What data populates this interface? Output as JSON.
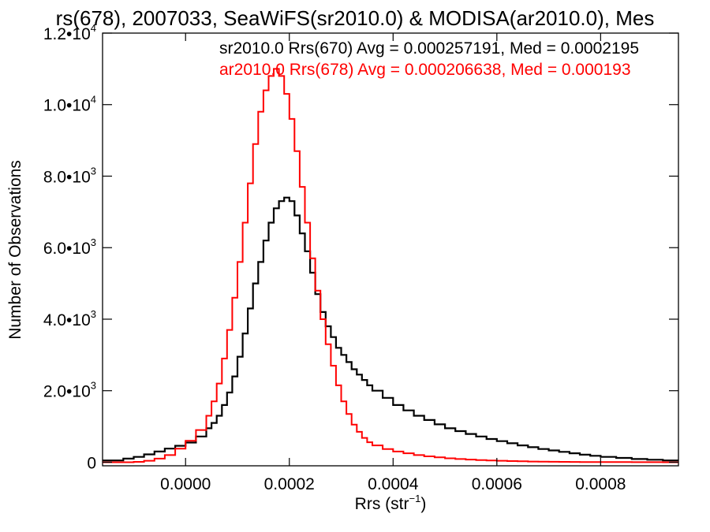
{
  "chart_data": {
    "type": "line",
    "title": "rs(678), 2007033, SeaWiFS(sr2010.0) & MODISA(ar2010.0), Mes",
    "xlabel": "Rrs (str",
    "xlabel_sup": "−1",
    "xlabel_close": ")",
    "ylabel": "Number of Observations",
    "xlim": [
      -0.00016,
      0.00095
    ],
    "ylim": [
      -100,
      12000
    ],
    "x_ticks": [
      0.0,
      0.0002,
      0.0004,
      0.0006,
      0.0008
    ],
    "x_tick_labels": [
      "0.0000",
      "0.0002",
      "0.0004",
      "0.0006",
      "0.0008"
    ],
    "y_ticks": [
      0,
      2000,
      4000,
      6000,
      8000,
      10000,
      12000
    ],
    "y_tick_labels": [
      {
        "text": "0",
        "exp": ""
      },
      {
        "text": "2.0•10",
        "exp": "3"
      },
      {
        "text": "4.0•10",
        "exp": "3"
      },
      {
        "text": "6.0•10",
        "exp": "3"
      },
      {
        "text": "8.0•10",
        "exp": "3"
      },
      {
        "text": "1.0•10",
        "exp": "4"
      },
      {
        "text": "1.2•10",
        "exp": "4"
      }
    ],
    "grid": false,
    "legend_position": "top-right",
    "series": [
      {
        "name": "sr2010.0 Rrs(670) Avg = 0.000257191, Med = 0.0002195",
        "color": "#000000",
        "step": true,
        "x": [
          -0.00016,
          -0.00012,
          -0.0001,
          -8e-05,
          -6e-05,
          -4e-05,
          -2e-05,
          0.0,
          2e-05,
          4e-05,
          5e-05,
          6e-05,
          7e-05,
          8e-05,
          9e-05,
          0.0001,
          0.00011,
          0.00012,
          0.00013,
          0.00014,
          0.00015,
          0.00016,
          0.00017,
          0.00018,
          0.00019,
          0.0002,
          0.00021,
          0.00022,
          0.00023,
          0.00024,
          0.00025,
          0.00026,
          0.00027,
          0.00028,
          0.00029,
          0.0003,
          0.00031,
          0.00032,
          0.00033,
          0.00034,
          0.00035,
          0.00036,
          0.00038,
          0.0004,
          0.00042,
          0.00044,
          0.00046,
          0.00048,
          0.0005,
          0.00052,
          0.00054,
          0.00056,
          0.00058,
          0.0006,
          0.00062,
          0.00064,
          0.00066,
          0.00068,
          0.0007,
          0.00072,
          0.00074,
          0.00076,
          0.00078,
          0.0008,
          0.00083,
          0.00086,
          0.00089,
          0.00092,
          0.00095
        ],
        "y": [
          50,
          100,
          150,
          220,
          300,
          380,
          460,
          550,
          720,
          950,
          1100,
          1300,
          1600,
          1950,
          2400,
          2950,
          3600,
          4300,
          5000,
          5600,
          6200,
          6700,
          7100,
          7300,
          7400,
          7300,
          6900,
          6400,
          5900,
          5300,
          4700,
          4200,
          3800,
          3500,
          3200,
          3000,
          2800,
          2600,
          2450,
          2300,
          2150,
          2000,
          1800,
          1600,
          1450,
          1300,
          1180,
          1060,
          950,
          870,
          790,
          720,
          650,
          590,
          530,
          470,
          420,
          370,
          330,
          290,
          250,
          210,
          180,
          150,
          120,
          90,
          70,
          50,
          40
        ]
      },
      {
        "name": "ar2010.0 Rrs(678) Avg = 0.000206638, Med = 0.000193",
        "color": "#ff0000",
        "step": true,
        "x": [
          -0.00016,
          -0.00012,
          -0.0001,
          -8e-05,
          -6e-05,
          -4e-05,
          -2e-05,
          0.0,
          2e-05,
          4e-05,
          5e-05,
          6e-05,
          7e-05,
          8e-05,
          9e-05,
          0.0001,
          0.00011,
          0.00012,
          0.00013,
          0.00014,
          0.00015,
          0.00016,
          0.00017,
          0.00018,
          0.00019,
          0.0002,
          0.00021,
          0.00022,
          0.00023,
          0.00024,
          0.00025,
          0.00026,
          0.00027,
          0.00028,
          0.00029,
          0.0003,
          0.00031,
          0.00032,
          0.00033,
          0.00034,
          0.00035,
          0.00036,
          0.00038,
          0.0004,
          0.00042,
          0.00044,
          0.00046,
          0.00048,
          0.0005,
          0.00052,
          0.00054,
          0.00056,
          0.00058,
          0.0006,
          0.00062,
          0.00064,
          0.00066,
          0.00068,
          0.0007,
          0.00072,
          0.00074,
          0.00076,
          0.00078,
          0.0008,
          0.00083,
          0.00086,
          0.00089,
          0.00092,
          0.00095
        ],
        "y": [
          0,
          0,
          10,
          40,
          100,
          200,
          380,
          600,
          900,
          1300,
          1700,
          2200,
          2900,
          3700,
          4600,
          5600,
          6700,
          7800,
          8900,
          9800,
          10400,
          10800,
          11000,
          10800,
          10300,
          9600,
          8700,
          7700,
          6700,
          5700,
          4800,
          4000,
          3300,
          2700,
          2150,
          1700,
          1350,
          1050,
          850,
          680,
          560,
          470,
          370,
          300,
          250,
          200,
          165,
          135,
          110,
          90,
          75,
          60,
          50,
          40,
          32,
          26,
          20,
          16,
          12,
          10,
          8,
          6,
          5,
          4,
          3,
          2,
          1,
          0,
          0
        ]
      }
    ]
  }
}
